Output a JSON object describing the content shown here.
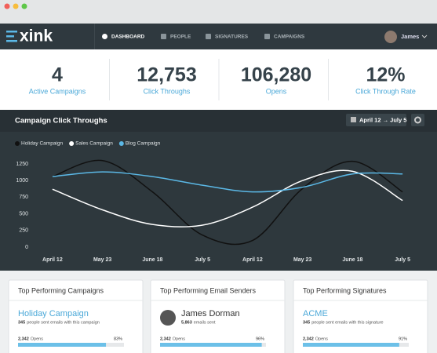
{
  "header": {
    "logo": "xink",
    "nav": [
      "DASHBOARD",
      "PEOPLE",
      "SIGNATURES",
      "CAMPAIGNS"
    ],
    "user": "James"
  },
  "stats": [
    {
      "value": "4",
      "label": "Active Campaigns"
    },
    {
      "value": "12,753",
      "label": "Click Throughs"
    },
    {
      "value": "106,280",
      "label": "Opens"
    },
    {
      "value": "12%",
      "label": "Click Through Rate"
    }
  ],
  "chart_data": {
    "type": "line",
    "title": "Campaign Click Throughs",
    "date_range": "April 12 → July 5",
    "categories": [
      "April 12",
      "May 23",
      "June 18",
      "July 5",
      "April 12",
      "May 23",
      "June 18",
      "July 5"
    ],
    "series": [
      {
        "name": "Holiday Campaign",
        "color": "#111111",
        "values": [
          1060,
          1300,
          830,
          180,
          100,
          880,
          1290,
          830
        ]
      },
      {
        "name": "Sales Campaign",
        "color": "#ffffff",
        "values": [
          870,
          560,
          340,
          330,
          600,
          1000,
          1140,
          700
        ]
      },
      {
        "name": "Blog Campaign",
        "color": "#5bb8e6",
        "values": [
          1060,
          1130,
          1060,
          930,
          830,
          900,
          1100,
          1100
        ]
      }
    ],
    "ylim": [
      0,
      1250
    ],
    "yticks": [
      0,
      250,
      500,
      750,
      1000,
      1250
    ],
    "grid": false
  },
  "cards": [
    {
      "title": "Top Performing Campaigns",
      "name": "Holiday Campaign",
      "count": "345",
      "detail": "people sent emails with this campaign",
      "opens": "2,342",
      "opens_label": "Opens",
      "opens_pct": {
        "value": 83,
        "label": "83%"
      }
    },
    {
      "title": "Top Performing Email Senders",
      "name": "James Dorman",
      "count": "5,863",
      "detail": "emails sent",
      "opens": "2,342",
      "opens_label": "Opens",
      "opens_pct": {
        "value": 96,
        "label": "96%"
      }
    },
    {
      "title": "Top Performing Signatures",
      "name": "ACME",
      "count": "345",
      "detail": "people sent emails with this signature",
      "opens": "2,342",
      "opens_label": "Opens",
      "opens_pct": {
        "value": 91,
        "label": "91%"
      }
    }
  ]
}
